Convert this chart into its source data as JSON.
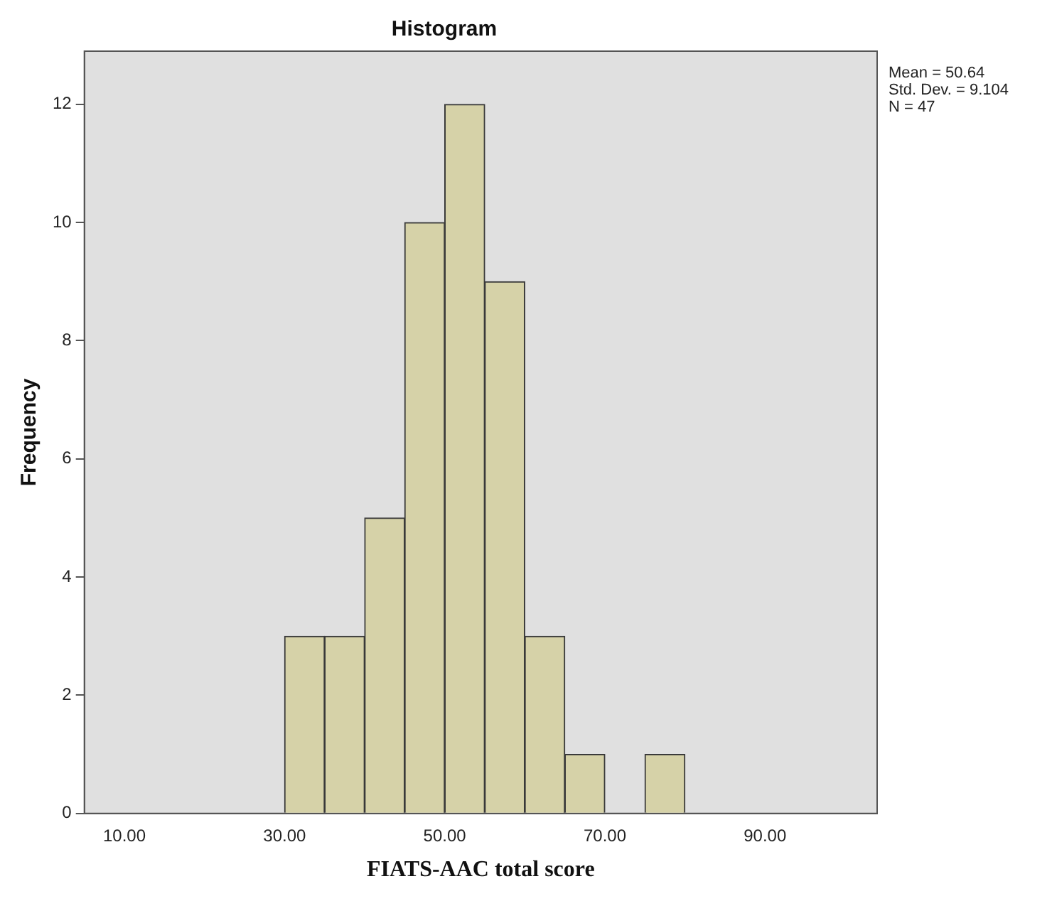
{
  "chart_data": {
    "type": "histogram",
    "title": "Histogram",
    "xlabel": "FIATS-AAC total score",
    "ylabel": "Frequency",
    "bins": [
      30,
      35,
      40,
      45,
      50,
      55,
      60,
      65,
      70,
      75,
      80
    ],
    "values": [
      3,
      3,
      5,
      10,
      12,
      9,
      3,
      1,
      0,
      1
    ],
    "color": "#d6d2a8",
    "xlim": [
      5,
      104
    ],
    "xticks": [
      {
        "value": 10,
        "label": "10.00"
      },
      {
        "value": 30,
        "label": "30.00"
      },
      {
        "value": 50,
        "label": "50.00"
      },
      {
        "value": 70,
        "label": "70.00"
      },
      {
        "value": 90,
        "label": "90.00"
      }
    ],
    "ylim": [
      0,
      12.9
    ],
    "yticks": [
      0,
      2,
      4,
      6,
      8,
      10,
      12
    ],
    "grid": false,
    "legend": false,
    "annotations": [
      "Mean = 50.64",
      "Std. Dev. = 9.104",
      "N = 47"
    ]
  }
}
